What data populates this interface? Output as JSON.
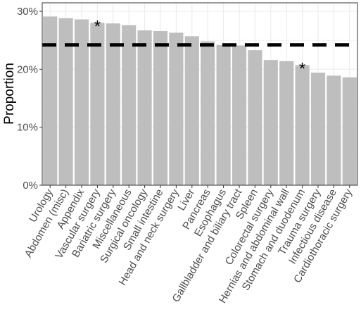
{
  "chart_data": {
    "type": "bar",
    "title": "",
    "xlabel": "",
    "ylabel": "Proportion",
    "ylim": [
      0,
      30
    ],
    "ytick_labels": [
      "0%",
      "10%",
      "20%",
      "30%"
    ],
    "grid": true,
    "categories": [
      "Urology",
      "Abdomen (misc)",
      "Appendix",
      "Vascular surgery",
      "Bariatric surgery",
      "Miscellaneous",
      "Surgical oncology",
      "Small intestine",
      "Head and neck surgery",
      "Liver",
      "Pancreas",
      "Esophagus",
      "Gallbladder and biliary tract",
      "Spleen",
      "Colorectal surgery",
      "Hernias and abdominal wall",
      "Stomach and duodenum",
      "Trauma surgery",
      "Infectious disease",
      "Cardiothoracic surgery"
    ],
    "values": [
      29.1,
      28.8,
      28.6,
      28.0,
      27.9,
      27.6,
      26.7,
      26.6,
      26.3,
      25.7,
      24.8,
      24.2,
      24.1,
      23.3,
      21.6,
      21.4,
      20.7,
      19.4,
      18.9,
      18.6
    ],
    "reference_line": 24.2,
    "annotations": [
      {
        "category": "Vascular surgery",
        "text": "*"
      },
      {
        "category": "Stomach and duodenum",
        "text": "*"
      }
    ],
    "colors": {
      "bar": "#bebebe",
      "grid": "#ebebeb",
      "reference_line": "#000000",
      "panel_border": "#333333"
    }
  }
}
